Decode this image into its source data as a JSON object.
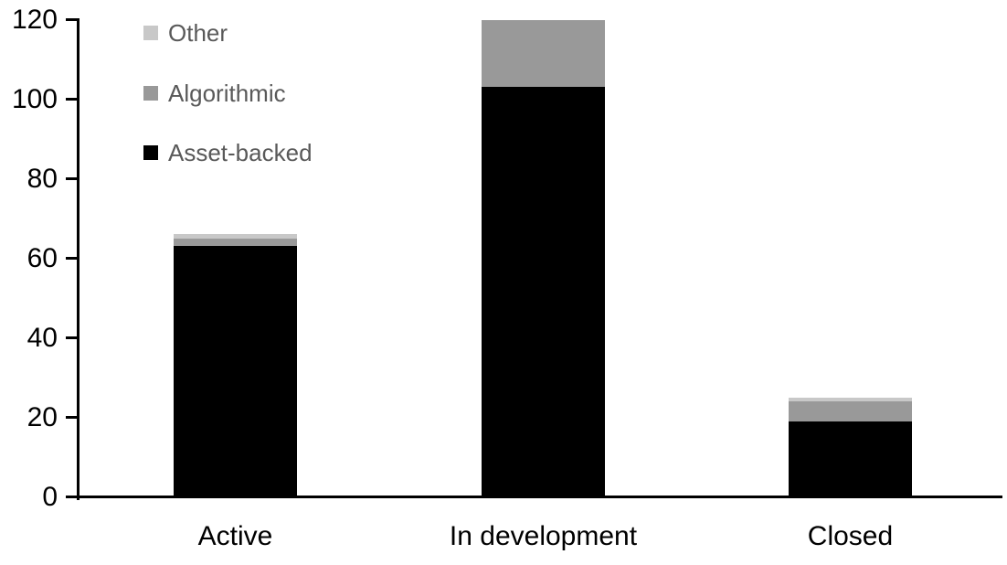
{
  "chart_data": {
    "type": "bar",
    "stacked": true,
    "title": "",
    "xlabel": "",
    "ylabel": "",
    "categories": [
      "Active",
      "In development",
      "Closed"
    ],
    "series": [
      {
        "name": "Asset-backed",
        "color": "#000000",
        "values": [
          63,
          103,
          19
        ]
      },
      {
        "name": "Algorithmic",
        "color": "#999999",
        "values": [
          2,
          17,
          5
        ]
      },
      {
        "name": "Other",
        "color": "#C8C8C8",
        "values": [
          1,
          0,
          1
        ]
      }
    ],
    "totals": [
      66,
      120,
      25
    ],
    "ylim": [
      0,
      120
    ],
    "yticks": [
      0,
      20,
      40,
      60,
      80,
      100,
      120
    ],
    "grid": false,
    "axis_color": "#000000",
    "legend": {
      "position": "top-left",
      "order": [
        "Other",
        "Algorithmic",
        "Asset-backed"
      ],
      "text_color": "#595959"
    }
  }
}
